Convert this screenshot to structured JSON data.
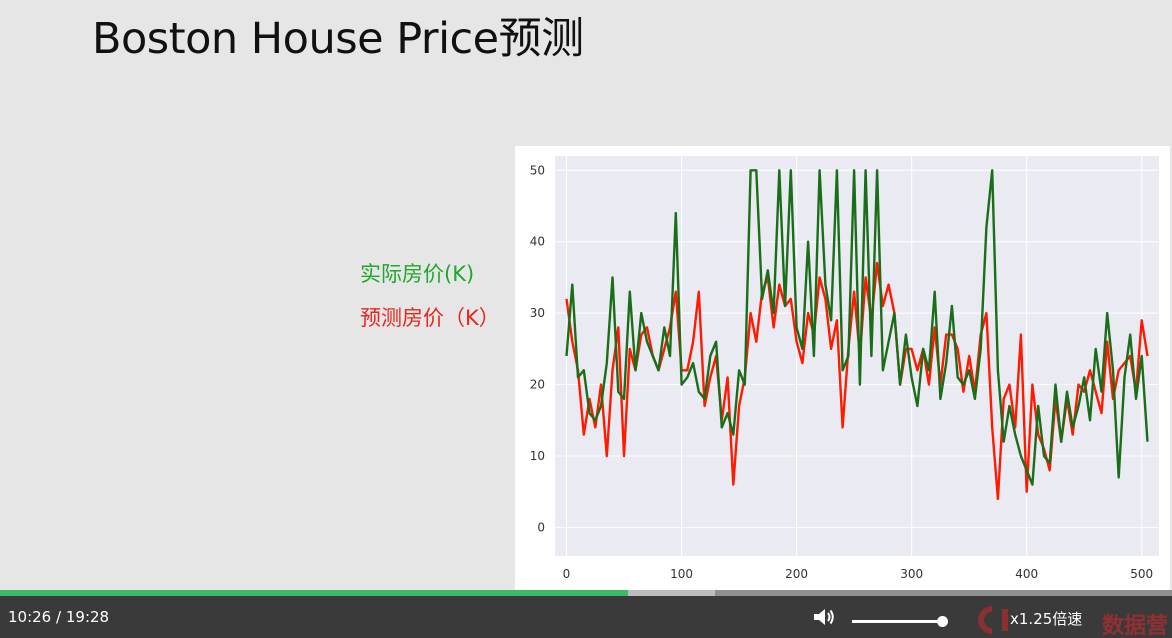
{
  "slide": {
    "title": "Boston House Price预测",
    "legend_actual": "实际房价(K)",
    "legend_predicted": "预测房价（K）"
  },
  "colors": {
    "actual": "#1a6e1a",
    "predicted": "#ff1a00",
    "plot_bg": "#eaeaf2",
    "grid": "#ffffff"
  },
  "chart_data": {
    "type": "line",
    "title": "",
    "xlabel": "",
    "ylabel": "",
    "xlim": [
      -10,
      515
    ],
    "ylim": [
      -4,
      52
    ],
    "xticks": [
      0,
      100,
      200,
      300,
      400,
      500
    ],
    "yticks": [
      0,
      10,
      20,
      30,
      40,
      50
    ],
    "xtick_labels": [
      "0",
      "100",
      "200",
      "300",
      "400",
      "500"
    ],
    "ytick_labels": [
      "0",
      "10",
      "20",
      "30",
      "40",
      "50"
    ],
    "x": [
      0,
      5,
      10,
      15,
      20,
      25,
      30,
      35,
      40,
      45,
      50,
      55,
      60,
      65,
      70,
      75,
      80,
      85,
      90,
      95,
      100,
      105,
      110,
      115,
      120,
      125,
      130,
      135,
      140,
      145,
      150,
      155,
      160,
      165,
      170,
      175,
      180,
      185,
      190,
      195,
      200,
      205,
      210,
      215,
      220,
      225,
      230,
      235,
      240,
      245,
      250,
      255,
      260,
      265,
      270,
      275,
      280,
      285,
      290,
      295,
      300,
      305,
      310,
      315,
      320,
      325,
      330,
      335,
      340,
      345,
      350,
      355,
      360,
      365,
      370,
      375,
      380,
      385,
      390,
      395,
      400,
      405,
      410,
      415,
      420,
      425,
      430,
      435,
      440,
      445,
      450,
      455,
      460,
      465,
      470,
      475,
      480,
      485,
      490,
      495,
      500,
      505
    ],
    "series": [
      {
        "name": "实际房价(K)",
        "values": [
          24,
          34,
          21,
          22,
          16,
          15,
          17,
          23,
          35,
          19,
          18,
          33,
          22,
          30,
          26,
          24,
          22,
          28,
          24,
          44,
          20,
          21,
          23,
          19,
          18,
          24,
          26,
          14,
          16,
          13,
          22,
          20,
          50,
          50,
          32,
          36,
          30,
          50,
          31,
          50,
          28,
          25,
          40,
          24,
          50,
          34,
          29,
          50,
          22,
          24,
          50,
          20,
          50,
          24,
          50,
          22,
          26,
          30,
          20,
          27,
          21,
          17,
          25,
          22,
          33,
          18,
          23,
          31,
          21,
          20,
          22,
          18,
          25,
          42,
          50,
          22,
          12,
          17,
          13,
          10,
          8,
          6,
          17,
          10,
          9,
          20,
          12,
          19,
          14,
          17,
          21,
          15,
          25,
          19,
          30,
          22,
          7,
          21,
          27,
          18,
          24,
          12
        ]
      },
      {
        "name": "预测房价（K）",
        "values": [
          32,
          26,
          22,
          13,
          18,
          14,
          20,
          10,
          22,
          28,
          10,
          25,
          22,
          27,
          28,
          24,
          22,
          25,
          28,
          33,
          22,
          22,
          26,
          33,
          17,
          21,
          24,
          15,
          21,
          6,
          17,
          21,
          30,
          26,
          33,
          35,
          28,
          34,
          31,
          32,
          26,
          23,
          30,
          27,
          35,
          32,
          25,
          29,
          14,
          25,
          33,
          24,
          35,
          29,
          37,
          31,
          34,
          30,
          20,
          25,
          25,
          22,
          25,
          20,
          28,
          20,
          27,
          27,
          25,
          19,
          24,
          19,
          27,
          30,
          14,
          4,
          18,
          20,
          14,
          27,
          5,
          20,
          13,
          11,
          8,
          18,
          12,
          18,
          13,
          20,
          19,
          22,
          19,
          16,
          26,
          18,
          22,
          23,
          24,
          19,
          29,
          24
        ]
      }
    ],
    "annotations": [
      {
        "label": "实际房价(K)",
        "color": "#1fa82c"
      },
      {
        "label": "预测房价（K）",
        "color": "#e8261a"
      }
    ]
  },
  "player": {
    "current_time": "10:26",
    "separator": "/",
    "duration": "19:28",
    "progress_fraction": 0.536,
    "buffered_fraction": 0.61,
    "volume_fraction": 1.0,
    "speed_label": "x1.25倍速",
    "logo_text": "数据营"
  }
}
